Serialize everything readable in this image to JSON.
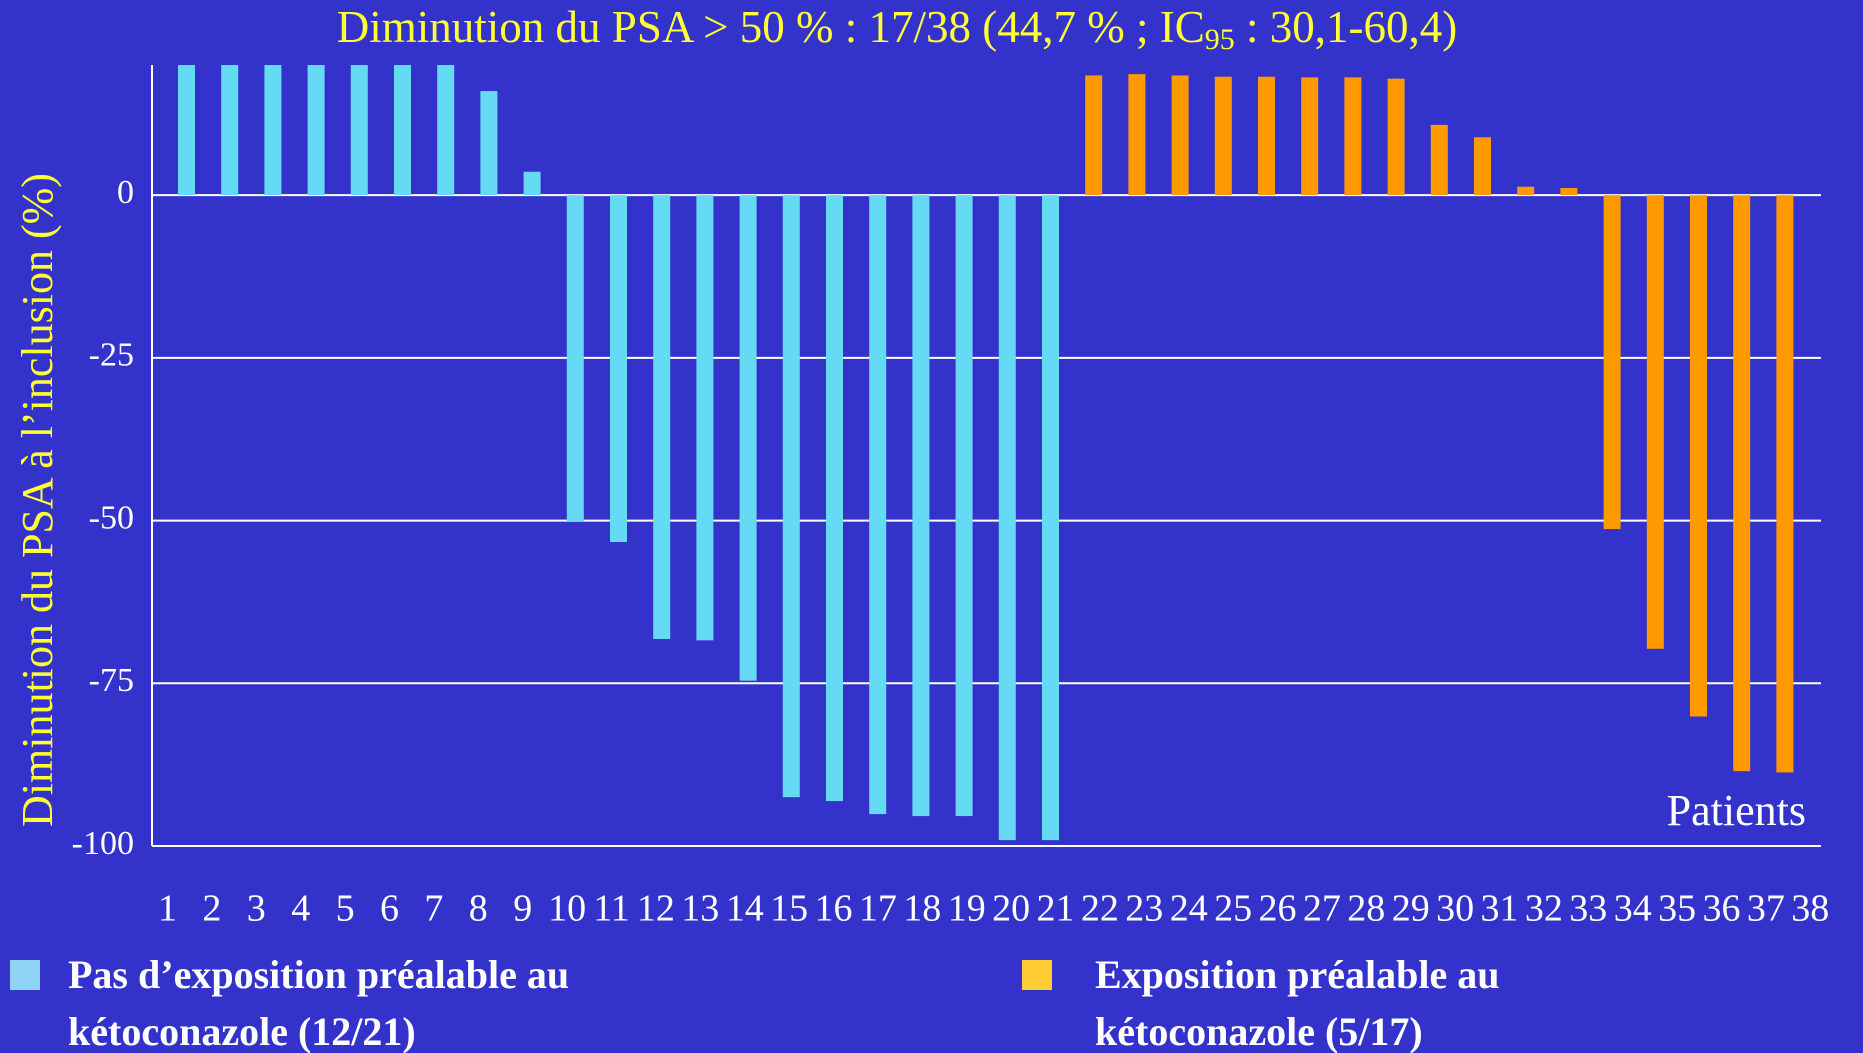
{
  "chart_data": {
    "type": "bar",
    "title": [
      "Diminution du PSA > 50 % : 17/38 (44,7 % ; IC",
      "95",
      " : 30,1-60,4)"
    ],
    "y_label": "Diminution du PSA à l’inclusion (%)",
    "annotation": "Patients",
    "categories": [
      "1",
      "2",
      "3",
      "4",
      "5",
      "6",
      "7",
      "8",
      "9",
      "10",
      "11",
      "12",
      "13",
      "14",
      "15",
      "16",
      "17",
      "18",
      "19",
      "20",
      "21",
      "22",
      "23",
      "24",
      "25",
      "26",
      "27",
      "28",
      "29",
      "30",
      "31",
      "32",
      "33",
      "34",
      "35",
      "36",
      "37",
      "38"
    ],
    "series": [
      {
        "name": "Pas d’exposition préalable au kétoconazole (12/21)",
        "color": "#66d9f5",
        "legend_color": "#8fd3f4",
        "values": [
          20,
          20,
          20,
          20,
          20,
          20,
          20,
          16,
          3.6,
          -50.2,
          -53.3,
          -68.2,
          -68.4,
          -74.6,
          -92.5,
          -93.1,
          -95.1,
          -95.4,
          -95.4,
          -99.1,
          -99.1,
          null,
          null,
          null,
          null,
          null,
          null,
          null,
          null,
          null,
          null,
          null,
          null,
          null,
          null,
          null,
          null,
          null
        ]
      },
      {
        "name": "Exposition préalable au kétoconazole (5/17)",
        "color": "#ff9900",
        "legend_color": "#ffcc33",
        "values": [
          null,
          null,
          null,
          null,
          null,
          null,
          null,
          null,
          null,
          null,
          null,
          null,
          null,
          null,
          null,
          null,
          null,
          null,
          null,
          null,
          null,
          18.4,
          18.6,
          18.4,
          18.2,
          18.2,
          18.1,
          18.1,
          17.9,
          10.8,
          8.9,
          1.3,
          1.1,
          -51.3,
          -69.7,
          -80.1,
          -88.5,
          -88.7
        ]
      }
    ],
    "ylim": [
      -100,
      20
    ],
    "yticks": [
      0,
      -25,
      -50,
      -75,
      -100
    ],
    "grid": true
  }
}
